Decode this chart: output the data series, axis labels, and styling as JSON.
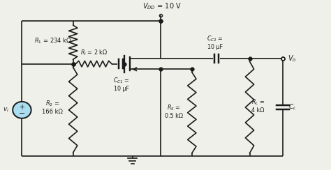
{
  "bg_color": "#f0f0eb",
  "line_color": "#1a1a1a",
  "text_color": "#1a1a1a",
  "vdd_label": "$V_{DD}$ = 10 V",
  "r1_label": "$R_1$ = 234 kΩ",
  "ri_label": "$R_i$ = 2 kΩ",
  "cc1_label": "$C_{C1}$ =\n10 μF",
  "r2_label": "$R_2$ =\n166 kΩ",
  "cc2_label": "$C_{C2}$ =\n10 μF",
  "rs_label": "$R_S$ =\n0.5 kΩ",
  "rl_label": "$R_L$ =\n4 kΩ",
  "cl_label": "$C_L$",
  "vi_label": "$v_i$",
  "vo_label": "$V_o$",
  "figsize": [
    4.74,
    2.44
  ],
  "dpi": 100
}
